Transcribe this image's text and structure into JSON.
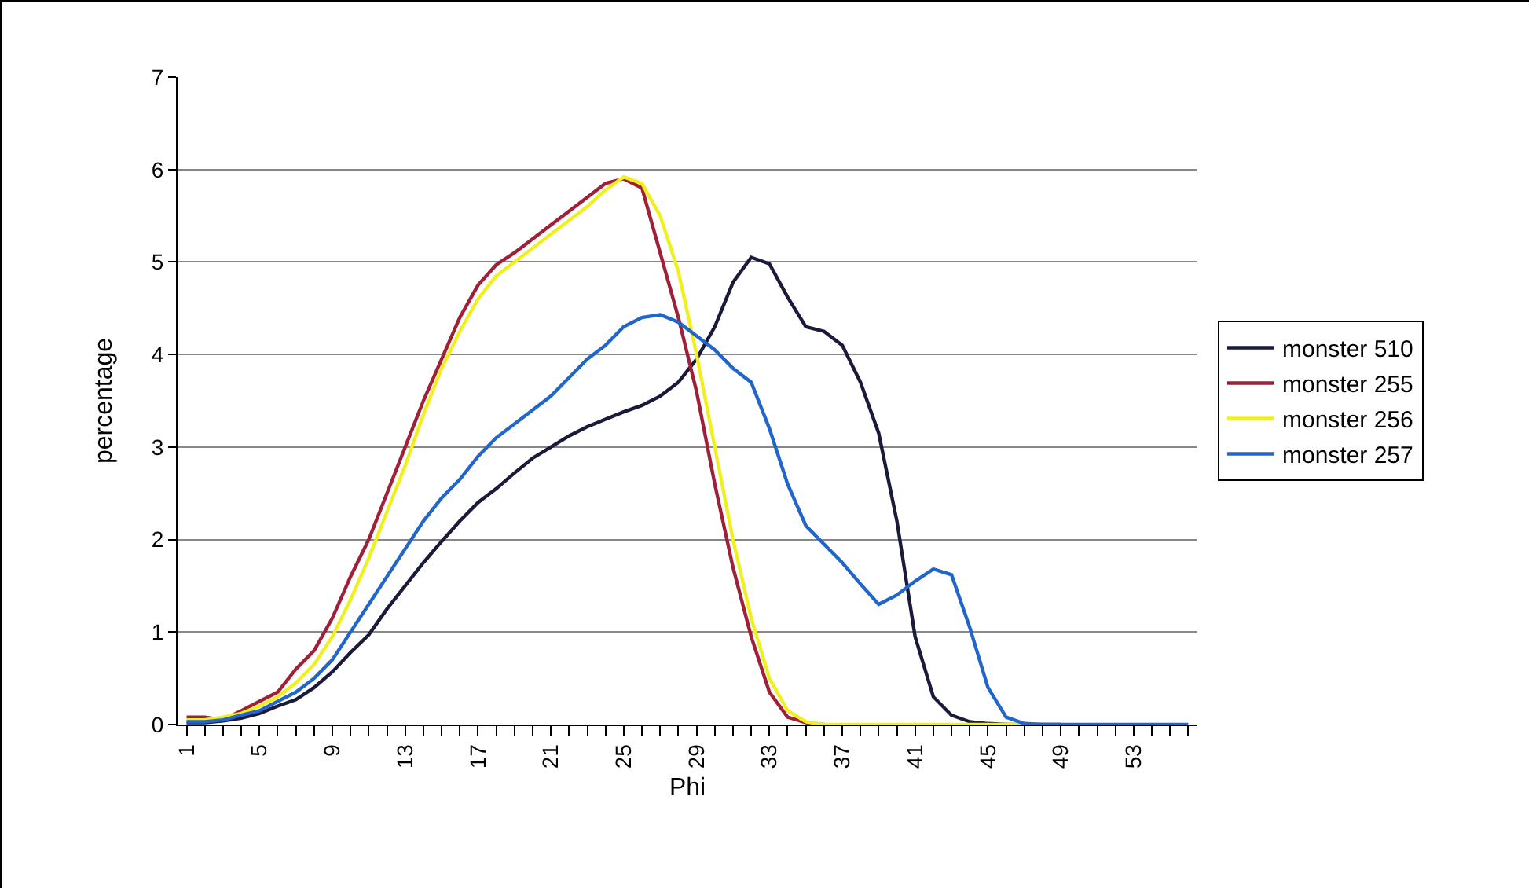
{
  "chart_data": {
    "type": "line",
    "xlabel": "Phi",
    "ylabel": "percentage",
    "categories": [
      "1",
      null,
      null,
      null,
      "5",
      null,
      null,
      null,
      "9",
      null,
      null,
      null,
      "13",
      null,
      null,
      null,
      "17",
      null,
      null,
      null,
      "21",
      null,
      null,
      null,
      "25",
      null,
      null,
      null,
      "29",
      null,
      null,
      null,
      "33",
      null,
      null,
      null,
      "37",
      null,
      null,
      null,
      "41",
      null,
      null,
      null,
      "45",
      null,
      null,
      null,
      "49",
      null,
      null,
      null,
      "53",
      null,
      null,
      null
    ],
    "series": [
      {
        "name": "monster 510",
        "color": "#1a1a3a",
        "values": [
          0.02,
          0.02,
          0.04,
          0.07,
          0.12,
          0.2,
          0.27,
          0.4,
          0.57,
          0.78,
          0.97,
          1.25,
          1.5,
          1.75,
          1.98,
          2.2,
          2.4,
          2.55,
          2.72,
          2.88,
          3.0,
          3.12,
          3.22,
          3.3,
          3.38,
          3.45,
          3.55,
          3.7,
          3.95,
          4.3,
          4.78,
          5.05,
          4.98,
          4.62,
          4.3,
          4.25,
          4.1,
          3.7,
          3.15,
          2.2,
          0.95,
          0.3,
          0.1,
          0.03,
          0.01,
          0,
          0,
          0,
          0,
          null,
          null,
          null,
          null,
          null,
          null,
          null
        ]
      },
      {
        "name": "monster 255",
        "color": "#a0203a",
        "values": [
          0.08,
          0.08,
          0.05,
          0.15,
          0.25,
          0.35,
          0.6,
          0.8,
          1.15,
          1.6,
          2.0,
          2.5,
          3.0,
          3.5,
          3.95,
          4.4,
          4.75,
          4.97,
          5.1,
          5.25,
          5.4,
          5.55,
          5.7,
          5.85,
          5.9,
          5.8,
          5.1,
          4.4,
          3.6,
          2.6,
          1.7,
          0.95,
          0.35,
          0.08,
          0.02,
          0,
          null,
          null,
          null,
          null,
          null,
          null,
          null,
          null,
          null,
          null,
          null,
          null,
          null,
          null,
          null,
          null,
          null,
          null,
          null,
          null
        ]
      },
      {
        "name": "monster 256",
        "color": "#f0f020",
        "values": [
          0.05,
          0.05,
          0.08,
          0.12,
          0.2,
          0.3,
          0.45,
          0.65,
          0.95,
          1.35,
          1.8,
          2.3,
          2.8,
          3.35,
          3.85,
          4.25,
          4.6,
          4.85,
          5.0,
          5.15,
          5.3,
          5.45,
          5.6,
          5.78,
          5.92,
          5.85,
          5.5,
          4.9,
          4.0,
          3.0,
          2.0,
          1.15,
          0.5,
          0.15,
          0.03,
          0,
          0,
          0,
          0,
          0,
          0,
          0,
          0,
          0,
          0,
          0,
          0,
          0,
          null,
          null,
          null,
          null,
          null,
          null,
          null,
          null
        ]
      },
      {
        "name": "monster 257",
        "color": "#2266cc",
        "values": [
          0.03,
          0.03,
          0.05,
          0.1,
          0.15,
          0.25,
          0.35,
          0.5,
          0.7,
          1.0,
          1.3,
          1.6,
          1.9,
          2.2,
          2.45,
          2.65,
          2.9,
          3.1,
          3.25,
          3.4,
          3.55,
          3.75,
          3.95,
          4.1,
          4.3,
          4.4,
          4.43,
          4.35,
          4.2,
          4.05,
          3.85,
          3.7,
          3.2,
          2.6,
          2.15,
          1.95,
          1.75,
          1.52,
          1.3,
          1.4,
          1.55,
          1.68,
          1.62,
          1.05,
          0.4,
          0.08,
          0.01,
          0,
          0,
          0,
          0,
          0,
          0,
          0,
          0,
          0
        ]
      }
    ],
    "ylim": [
      0,
      7
    ],
    "yticks": [
      0,
      1,
      2,
      3,
      4,
      5,
      6,
      7
    ],
    "grid": "y",
    "legend": "right",
    "marker": "none",
    "line_style": "solid"
  }
}
